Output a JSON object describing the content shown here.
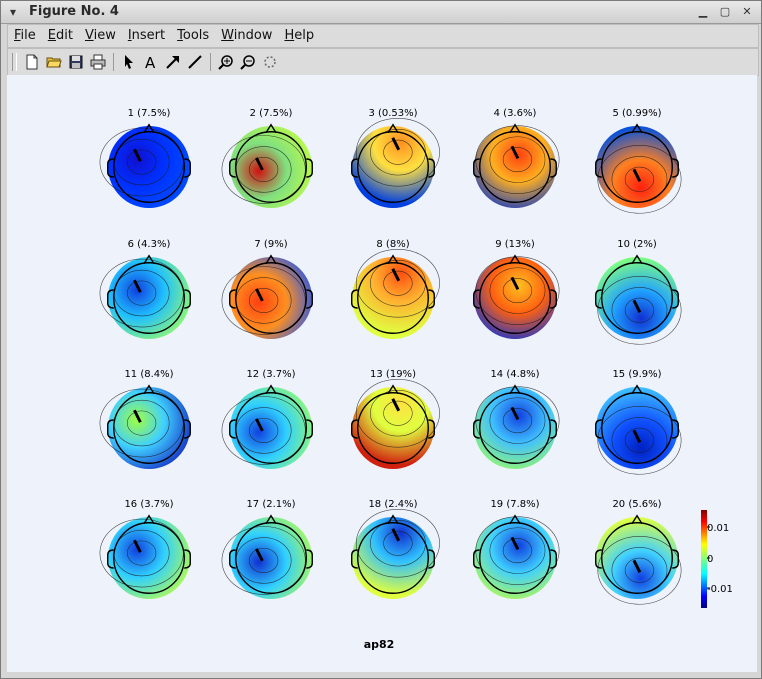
{
  "window": {
    "title": "Figure No. 4",
    "controls": [
      "minimize",
      "maximize",
      "close"
    ]
  },
  "menu": [
    "File",
    "Edit",
    "View",
    "Insert",
    "Tools",
    "Window",
    "Help"
  ],
  "toolbar": {
    "icons": [
      "new-file-icon",
      "open-folder-icon",
      "save-icon",
      "print-icon",
      "arrow-pointer-icon",
      "text-icon",
      "draw-arrow-icon",
      "draw-line-icon",
      "zoom-in-icon",
      "zoom-out-icon",
      "rotate-icon"
    ]
  },
  "figure": {
    "title": "ap82",
    "maps": [
      {
        "label": "1 (7.5%)",
        "colors": [
          "#1010d0",
          "#0030ff",
          "#0050ff"
        ]
      },
      {
        "label": "2 (7.5%)",
        "colors": [
          "#d01010",
          "#80e080",
          "#c8ff40"
        ]
      },
      {
        "label": "3 (0.53%)",
        "colors": [
          "#ff9020",
          "#ffe040",
          "#0040e0"
        ]
      },
      {
        "label": "4 (3.6%)",
        "colors": [
          "#ff4010",
          "#ffb020",
          "#0030d0"
        ]
      },
      {
        "label": "5 (0.99%)",
        "colors": [
          "#ff2010",
          "#ff8020",
          "#0050e0"
        ]
      },
      {
        "label": "6 (4.3%)",
        "colors": [
          "#1040e0",
          "#20c0ff",
          "#a0ff60"
        ]
      },
      {
        "label": "7 (9%)",
        "colors": [
          "#ff4010",
          "#ff9020",
          "#1050ff"
        ]
      },
      {
        "label": "8 (8%)",
        "colors": [
          "#ff5010",
          "#ffb030",
          "#e0ff40"
        ]
      },
      {
        "label": "9 (13%)",
        "colors": [
          "#ffc020",
          "#ff6010",
          "#0030e0"
        ]
      },
      {
        "label": "10 (2%)",
        "colors": [
          "#1030d0",
          "#20a0ff",
          "#80ff80"
        ]
      },
      {
        "label": "11 (8.4%)",
        "colors": [
          "#a0ff40",
          "#40d0ff",
          "#1020c0"
        ]
      },
      {
        "label": "12 (3.7%)",
        "colors": [
          "#1040e0",
          "#30d0ff",
          "#a0ff60"
        ]
      },
      {
        "label": "13 (19%)",
        "colors": [
          "#ffe040",
          "#e0ff40",
          "#d02010"
        ]
      },
      {
        "label": "14 (4.8%)",
        "colors": [
          "#1040e0",
          "#40c0ff",
          "#a0ff60"
        ]
      },
      {
        "label": "15 (9.9%)",
        "colors": [
          "#0020c0",
          "#1050ff",
          "#40c0ff"
        ]
      },
      {
        "label": "16 (3.7%)",
        "colors": [
          "#1040e0",
          "#30d0ff",
          "#c0ff40"
        ]
      },
      {
        "label": "17 (2.1%)",
        "colors": [
          "#1030d0",
          "#30d0ff",
          "#c0ff40"
        ]
      },
      {
        "label": "18 (2.4%)",
        "colors": [
          "#1030d0",
          "#30c0ff",
          "#e0ff40"
        ]
      },
      {
        "label": "19 (7.8%)",
        "colors": [
          "#1040e0",
          "#40d0ff",
          "#c0ff40"
        ]
      },
      {
        "label": "20 (5.6%)",
        "colors": [
          "#1040e0",
          "#40d0ff",
          "#e0ff40"
        ]
      }
    ]
  },
  "colorbar": {
    "ticks": [
      "0.01",
      "0",
      "-0.01"
    ]
  }
}
